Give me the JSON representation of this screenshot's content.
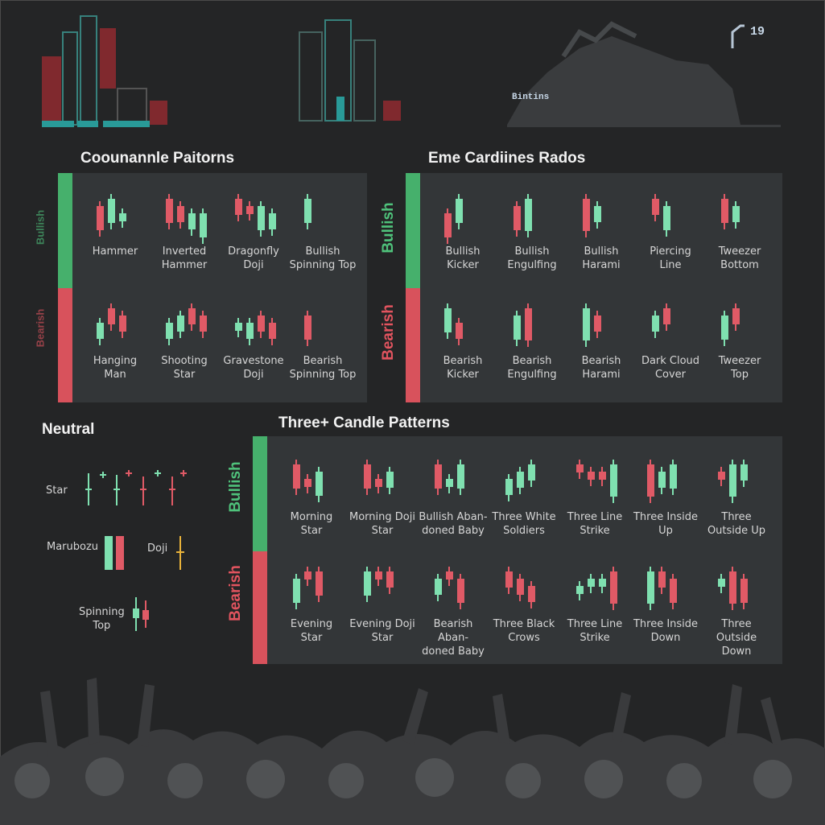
{
  "readout": {
    "top_right": "19",
    "label": "Bintins"
  },
  "titles": {
    "single": "Coounannle Paitorns",
    "two": "Eme Cardiines Rados",
    "neutral": "Neutral",
    "three": "Three+ Candle Patterns"
  },
  "side_labels": {
    "single_bull": "Bullish",
    "single_bear": "Bearish",
    "two_bull": "Bullish",
    "two_bear": "Bearish",
    "three_bull": "Bullish",
    "three_bear": "Bearish"
  },
  "single_bull": [
    {
      "l1": "Hammer",
      "l2": ""
    },
    {
      "l1": "Inverted",
      "l2": "Hammer"
    },
    {
      "l1": "Dragonfly",
      "l2": "Doji"
    },
    {
      "l1": "Bullish",
      "l2": "Spinning Top"
    }
  ],
  "single_bear": [
    {
      "l1": "Hanging",
      "l2": "Man"
    },
    {
      "l1": "Shooting",
      "l2": "Star"
    },
    {
      "l1": "Gravestone",
      "l2": "Doji"
    },
    {
      "l1": "Bearish",
      "l2": "Spinning Top"
    }
  ],
  "two_bull": [
    {
      "l1": "Bullish",
      "l2": "Kicker"
    },
    {
      "l1": "Bullish",
      "l2": "Engulfing"
    },
    {
      "l1": "Bullish",
      "l2": "Harami"
    },
    {
      "l1": "Piercing",
      "l2": "Line"
    },
    {
      "l1": "Tweezer",
      "l2": "Bottom"
    }
  ],
  "two_bear": [
    {
      "l1": "Bearish",
      "l2": "Kicker"
    },
    {
      "l1": "Bearish",
      "l2": "Engulfing"
    },
    {
      "l1": "Bearish",
      "l2": "Harami"
    },
    {
      "l1": "Dark Cloud",
      "l2": "Cover"
    },
    {
      "l1": "Tweezer",
      "l2": "Top"
    }
  ],
  "neutral": {
    "star": "Star",
    "marubozu": "Marubozu",
    "doji": "Doji",
    "spinning_l1": "Spinning",
    "spinning_l2": "Top"
  },
  "three_bull": [
    {
      "l1": "Morning",
      "l2": "Star"
    },
    {
      "l1": "Morning Doji",
      "l2": "Star"
    },
    {
      "l1": "Bullish Aban-",
      "l2": "doned Baby"
    },
    {
      "l1": "Three White",
      "l2": "Soldiers"
    },
    {
      "l1": "Three Line",
      "l2": "Strike"
    },
    {
      "l1": "Three Inside",
      "l2": "Up"
    },
    {
      "l1": "Three",
      "l2": "Outside Up"
    }
  ],
  "three_bear": [
    {
      "l1": "Evening",
      "l2": "Star"
    },
    {
      "l1": "Evening Doji",
      "l2": "Star"
    },
    {
      "l1": "Bearish Aban-",
      "l2": "doned Baby"
    },
    {
      "l1": "Three Black",
      "l2": "Crows"
    },
    {
      "l1": "Three Line",
      "l2": "Strike"
    },
    {
      "l1": "Three Inside",
      "l2": "Down"
    },
    {
      "l1": "Three Outside",
      "l2": "Down"
    }
  ],
  "colors": {
    "bull": "#46b06c",
    "bear": "#d8525c",
    "candle_up": "#7fe0b0",
    "candle_down": "#e05a66",
    "doji": "#e8b23a"
  }
}
